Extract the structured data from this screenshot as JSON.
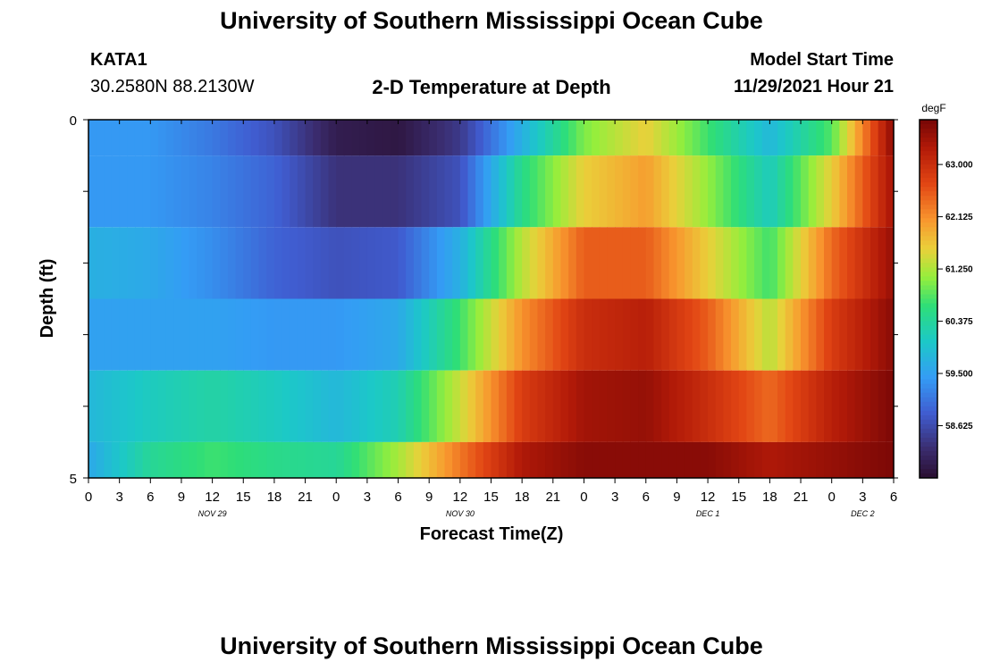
{
  "header": {
    "title": "University of Southern Mississippi Ocean Cube",
    "station_id": "KATA1",
    "station_coords": "30.2580N  88.2130W",
    "plot_title": "2-D Temperature at Depth",
    "model_start_label": "Model Start Time",
    "model_start_value": "11/29/2021 Hour 21"
  },
  "footer": {
    "title": "University of Southern Mississippi Ocean Cube"
  },
  "colorbar": {
    "unit": "degF",
    "ticks": [
      "63.000",
      "62.125",
      "61.250",
      "60.375",
      "59.500",
      "58.625"
    ],
    "min": 57.75,
    "max": 63.75
  },
  "chart_data": {
    "type": "heatmap",
    "title": "2-D Temperature at Depth",
    "xlabel": "Forecast Time(Z)",
    "ylabel": "Depth (ft)",
    "x_tick_labels": [
      "0",
      "3",
      "6",
      "9",
      "12",
      "15",
      "18",
      "21",
      "0",
      "3",
      "6",
      "9",
      "12",
      "15",
      "18",
      "21",
      "0",
      "3",
      "6",
      "9",
      "12",
      "15",
      "18",
      "21",
      "0",
      "3",
      "6"
    ],
    "date_labels": [
      "NOV 29",
      "NOV 30",
      "DEC 1",
      "DEC 2"
    ],
    "y_tick_labels": [
      "0",
      "5"
    ],
    "ylim": [
      0,
      5
    ],
    "value_unit": "degF",
    "x_hours": [
      0,
      6,
      12,
      18,
      24,
      30,
      36,
      42,
      48,
      54,
      60,
      66,
      72,
      78
    ],
    "depth_bands": [
      {
        "depth_range": [
          0,
          0.5
        ],
        "values": [
          59.4,
          59.4,
          59.1,
          58.7,
          58.0,
          57.9,
          58.4,
          59.7,
          61.0,
          61.6,
          60.7,
          59.8,
          60.8,
          63.6
        ]
      },
      {
        "depth_range": [
          0.5,
          1.5
        ],
        "values": [
          59.4,
          59.4,
          59.2,
          58.9,
          58.3,
          58.3,
          58.7,
          60.5,
          61.6,
          62.0,
          61.1,
          60.1,
          61.6,
          63.4
        ]
      },
      {
        "depth_range": [
          1.5,
          2.5
        ],
        "values": [
          59.7,
          59.6,
          59.3,
          58.9,
          58.7,
          58.8,
          59.7,
          61.3,
          62.5,
          62.5,
          61.6,
          60.7,
          62.4,
          63.5
        ]
      },
      {
        "depth_range": [
          2.5,
          3.5
        ],
        "values": [
          59.5,
          59.5,
          59.5,
          59.4,
          59.4,
          59.6,
          60.7,
          62.1,
          63.0,
          63.2,
          62.5,
          61.3,
          62.8,
          63.6
        ]
      },
      {
        "depth_range": [
          3.5,
          4.5
        ],
        "values": [
          59.8,
          60.1,
          60.3,
          60.1,
          59.8,
          60.2,
          61.4,
          62.8,
          63.4,
          63.5,
          63.0,
          62.4,
          63.2,
          63.7
        ]
      },
      {
        "depth_range": [
          4.5,
          5.0
        ],
        "values": [
          59.6,
          60.4,
          60.7,
          60.5,
          60.4,
          61.2,
          62.3,
          63.3,
          63.6,
          63.6,
          63.6,
          63.3,
          63.5,
          63.7
        ]
      }
    ]
  }
}
